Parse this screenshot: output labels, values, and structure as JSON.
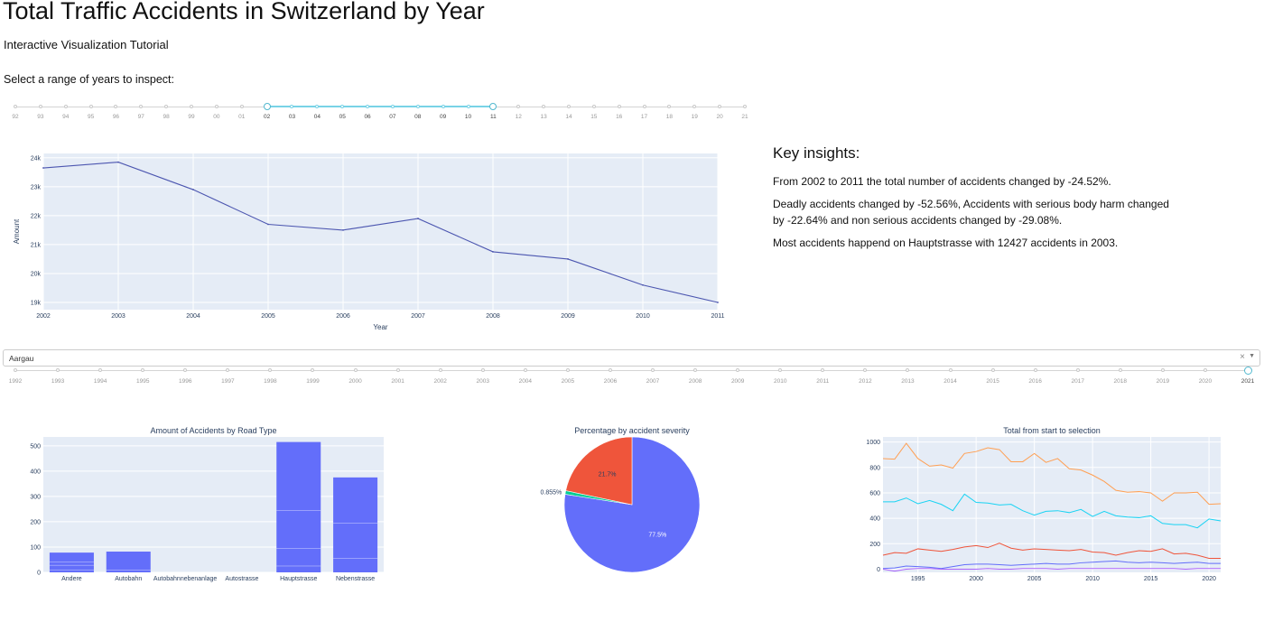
{
  "page": {
    "title": "Total Traffic Accidents in Switzerland by Year",
    "subtitle": "Interactive Visualization Tutorial",
    "range_prompt": "Select a range of years to inspect:"
  },
  "range_slider": {
    "labels": [
      "92",
      "93",
      "94",
      "95",
      "96",
      "97",
      "98",
      "99",
      "00",
      "01",
      "02",
      "03",
      "04",
      "05",
      "06",
      "07",
      "08",
      "09",
      "10",
      "11",
      "12",
      "13",
      "14",
      "15",
      "16",
      "17",
      "18",
      "19",
      "20",
      "21"
    ],
    "selected_start": "02",
    "selected_end": "11",
    "accent": "#79d3e6"
  },
  "insights": {
    "heading": "Key insights:",
    "line1": "From 2002 to 2011 the total number of accidents changed by -24.52%.",
    "line2": "Deadly accidents changed by -52.56%, Accidents with serious body harm changed by -22.64% and non serious accidents changed by -29.08%.",
    "line3": "Most accidents happend on Hauptstrasse with 12427 accidents in 2003."
  },
  "canton_dropdown": {
    "selected": "Aargau",
    "clear_symbol": "×",
    "arrow_symbol": "▼"
  },
  "year_slider": {
    "labels": [
      "1992",
      "1993",
      "1994",
      "1995",
      "1996",
      "1997",
      "1998",
      "1999",
      "2000",
      "2001",
      "2002",
      "2003",
      "2004",
      "2005",
      "2006",
      "2007",
      "2008",
      "2009",
      "2010",
      "2011",
      "2012",
      "2013",
      "2014",
      "2015",
      "2016",
      "2017",
      "2018",
      "2019",
      "2020",
      "2021"
    ],
    "selected": "2021"
  },
  "chart_data": [
    {
      "id": "traffic-line",
      "type": "line",
      "title": "",
      "xlabel": "Year",
      "ylabel": "Amount",
      "x": [
        2002,
        2003,
        2004,
        2005,
        2006,
        2007,
        2008,
        2009,
        2010,
        2011
      ],
      "x_tick_labels": [
        "2002",
        "2003",
        "2004",
        "2005",
        "2006",
        "2007",
        "2008",
        "2009",
        "2010",
        "2011"
      ],
      "y": [
        23650,
        23850,
        22900,
        21700,
        21500,
        21900,
        20750,
        20500,
        19600,
        19000
      ],
      "ylim": [
        18750,
        24150
      ],
      "y_ticks": [
        19000,
        20000,
        21000,
        22000,
        23000,
        24000
      ],
      "y_tick_labels": [
        "19k",
        "20k",
        "21k",
        "22k",
        "23k",
        "24k"
      ],
      "grid": true,
      "colors": {
        "line": "#4c56b0",
        "plot_bg": "#e5ecf6",
        "grid": "#ffffff"
      }
    },
    {
      "id": "road-type-bar",
      "type": "bar",
      "title": "Amount of Accidents by Road Type",
      "categories": [
        "Andere",
        "Autobahn",
        "Autobahnnebenanlage",
        "Autostrasse",
        "Hauptstrasse",
        "Nebenstrasse"
      ],
      "values": [
        78,
        82,
        0,
        0,
        515,
        375
      ],
      "segment_lines": [
        [
          10,
          28,
          40
        ],
        [
          8
        ],
        [],
        [],
        [
          25,
          95,
          245
        ],
        [
          55,
          195
        ]
      ],
      "ylim": [
        0,
        535
      ],
      "y_ticks": [
        0,
        100,
        200,
        300,
        400,
        500
      ],
      "y_tick_labels": [
        "0",
        "100",
        "200",
        "300",
        "400",
        "500"
      ],
      "grid": true,
      "colors": {
        "bar": "#636efa",
        "plot_bg": "#e5ecf6"
      }
    },
    {
      "id": "severity-pie",
      "type": "pie",
      "title": "Percentage by accident severity",
      "slices": [
        {
          "value": 77.5,
          "label": "77.5%",
          "color": "#636efa"
        },
        {
          "value": 0.855,
          "label": "0.855%",
          "color": "#00cc96"
        },
        {
          "value": 21.7,
          "label": "21.7%",
          "color": "#ef553b"
        }
      ]
    },
    {
      "id": "totals-line",
      "type": "line",
      "title": "Total from start to selection",
      "x": [
        1992,
        1993,
        1994,
        1995,
        1996,
        1997,
        1998,
        1999,
        2000,
        2001,
        2002,
        2003,
        2004,
        2005,
        2006,
        2007,
        2008,
        2009,
        2010,
        2011,
        2012,
        2013,
        2014,
        2015,
        2016,
        2017,
        2018,
        2019,
        2020,
        2021
      ],
      "x_ticks": [
        1995,
        2000,
        2005,
        2010,
        2015,
        2020
      ],
      "x_tick_labels": [
        "1995",
        "2000",
        "2005",
        "2010",
        "2015",
        "2020"
      ],
      "xlim": [
        1992,
        2021
      ],
      "ylim": [
        -25,
        1040
      ],
      "y_ticks": [
        0,
        200,
        400,
        600,
        800,
        1000
      ],
      "y_tick_labels": [
        "0",
        "200",
        "400",
        "600",
        "800",
        "1000"
      ],
      "grid": true,
      "series": [
        {
          "color": "#ff9f52",
          "values": [
            870,
            865,
            990,
            870,
            810,
            820,
            795,
            910,
            925,
            955,
            940,
            845,
            845,
            910,
            840,
            870,
            790,
            780,
            740,
            690,
            620,
            605,
            610,
            600,
            535,
            600,
            600,
            605,
            510,
            515
          ]
        },
        {
          "color": "#19d3f3",
          "values": [
            530,
            530,
            560,
            515,
            540,
            510,
            460,
            590,
            525,
            520,
            505,
            510,
            460,
            425,
            455,
            460,
            445,
            470,
            415,
            455,
            420,
            410,
            405,
            420,
            360,
            350,
            350,
            325,
            395,
            380
          ]
        },
        {
          "color": "#ef553b",
          "values": [
            110,
            130,
            125,
            160,
            150,
            140,
            155,
            175,
            185,
            170,
            205,
            165,
            150,
            160,
            155,
            150,
            145,
            155,
            135,
            130,
            110,
            130,
            145,
            140,
            160,
            120,
            125,
            110,
            85,
            85
          ]
        },
        {
          "color": "#636efa",
          "values": [
            5,
            10,
            25,
            20,
            15,
            5,
            20,
            35,
            40,
            40,
            35,
            30,
            35,
            40,
            45,
            40,
            40,
            50,
            55,
            60,
            65,
            55,
            50,
            55,
            50,
            45,
            50,
            55,
            45,
            45
          ]
        },
        {
          "color": "#ab63fa",
          "values": [
            0,
            -15,
            0,
            5,
            5,
            0,
            0,
            0,
            0,
            5,
            0,
            0,
            5,
            5,
            5,
            0,
            5,
            5,
            5,
            5,
            5,
            5,
            5,
            5,
            5,
            5,
            0,
            5,
            5,
            5
          ]
        }
      ]
    }
  ]
}
